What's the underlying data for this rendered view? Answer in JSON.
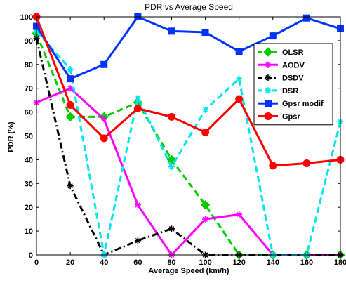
{
  "chart_data": {
    "type": "line",
    "title": "PDR vs Average Speed",
    "xlabel": "Average Speed (km/h)",
    "ylabel": "PDR (%)",
    "xlim": [
      0,
      180
    ],
    "ylim": [
      0,
      100
    ],
    "x_ticks": [
      0,
      20,
      40,
      60,
      80,
      100,
      120,
      140,
      160,
      180
    ],
    "y_ticks": [
      0,
      10,
      20,
      30,
      40,
      50,
      60,
      70,
      80,
      90,
      100
    ],
    "grid": false,
    "legend_position": "top-right",
    "series": [
      {
        "name": "OLSR",
        "color": "#00cc00",
        "line_style": "dashed",
        "marker": "diamond",
        "x": [
          0,
          20,
          40,
          60,
          80,
          100,
          120,
          140,
          160,
          180
        ],
        "y": [
          93,
          58,
          58,
          64,
          40,
          21,
          0,
          0,
          0,
          0
        ]
      },
      {
        "name": "AODV",
        "color": "#ff00ff",
        "line_style": "solid",
        "marker": "star",
        "x": [
          0,
          20,
          40,
          60,
          80,
          100,
          120,
          140,
          160,
          180
        ],
        "y": [
          64,
          70,
          57,
          21,
          0,
          15,
          17,
          0,
          0,
          0
        ]
      },
      {
        "name": "DSDV",
        "color": "#000000",
        "line_style": "dashdot",
        "marker": "star",
        "x": [
          0,
          20,
          40,
          60,
          80,
          100,
          120,
          140,
          160,
          180
        ],
        "y": [
          91,
          29,
          0,
          6,
          11,
          0,
          0,
          0,
          0,
          0
        ]
      },
      {
        "name": "DSR",
        "color": "#00e5ee",
        "line_style": "dashed",
        "marker": "star",
        "x": [
          0,
          20,
          40,
          60,
          80,
          100,
          120,
          140,
          160,
          180
        ],
        "y": [
          94,
          78,
          0,
          66,
          37,
          61,
          74,
          0,
          0,
          56
        ]
      },
      {
        "name": "Gpsr modif",
        "color": "#0033ff",
        "line_style": "solid",
        "marker": "square",
        "x": [
          0,
          20,
          40,
          60,
          80,
          100,
          120,
          140,
          160,
          180
        ],
        "y": [
          96,
          74,
          80,
          100,
          94,
          93.5,
          85.5,
          92,
          99.5,
          95
        ]
      },
      {
        "name": "Gpsr",
        "color": "#ff0000",
        "line_style": "solid",
        "marker": "circle",
        "x": [
          0,
          20,
          40,
          60,
          80,
          100,
          120,
          140,
          160,
          180
        ],
        "y": [
          100,
          63,
          49,
          61.5,
          58,
          51.5,
          65.5,
          37.5,
          38.5,
          40
        ]
      }
    ]
  }
}
